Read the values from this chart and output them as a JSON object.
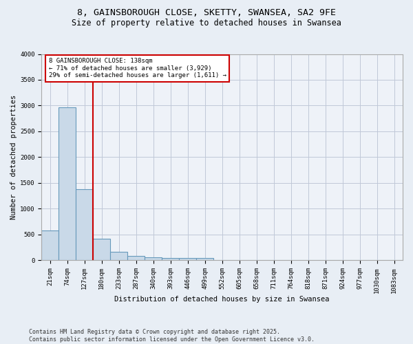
{
  "title1": "8, GAINSBOROUGH CLOSE, SKETTY, SWANSEA, SA2 9FE",
  "title2": "Size of property relative to detached houses in Swansea",
  "xlabel": "Distribution of detached houses by size in Swansea",
  "ylabel": "Number of detached properties",
  "categories": [
    "21sqm",
    "74sqm",
    "127sqm",
    "180sqm",
    "233sqm",
    "287sqm",
    "340sqm",
    "393sqm",
    "446sqm",
    "499sqm",
    "552sqm",
    "605sqm",
    "658sqm",
    "711sqm",
    "764sqm",
    "818sqm",
    "871sqm",
    "924sqm",
    "977sqm",
    "1030sqm",
    "1083sqm"
  ],
  "values": [
    580,
    2970,
    1380,
    420,
    160,
    90,
    60,
    50,
    50,
    50,
    0,
    0,
    0,
    0,
    0,
    0,
    0,
    0,
    0,
    0,
    0
  ],
  "bar_color": "#c9d9e8",
  "bar_edge_color": "#6699bb",
  "grid_color": "#c0c8d8",
  "vline_color": "#cc0000",
  "vline_position": 2.5,
  "box_color": "#cc0000",
  "annotation_title": "8 GAINSBOROUGH CLOSE: 138sqm",
  "annotation_line1": "← 71% of detached houses are smaller (3,929)",
  "annotation_line2": "29% of semi-detached houses are larger (1,611) →",
  "ylim": [
    0,
    4000
  ],
  "yticks": [
    0,
    500,
    1000,
    1500,
    2000,
    2500,
    3000,
    3500,
    4000
  ],
  "footer1": "Contains HM Land Registry data © Crown copyright and database right 2025.",
  "footer2": "Contains public sector information licensed under the Open Government Licence v3.0.",
  "background_color": "#e8eef5",
  "plot_bg_color": "#eef2f8",
  "title_fontsize": 9.5,
  "subtitle_fontsize": 8.5,
  "axis_fontsize": 7.5,
  "tick_fontsize": 6.5,
  "annot_fontsize": 6.5,
  "footer_fontsize": 6.0
}
